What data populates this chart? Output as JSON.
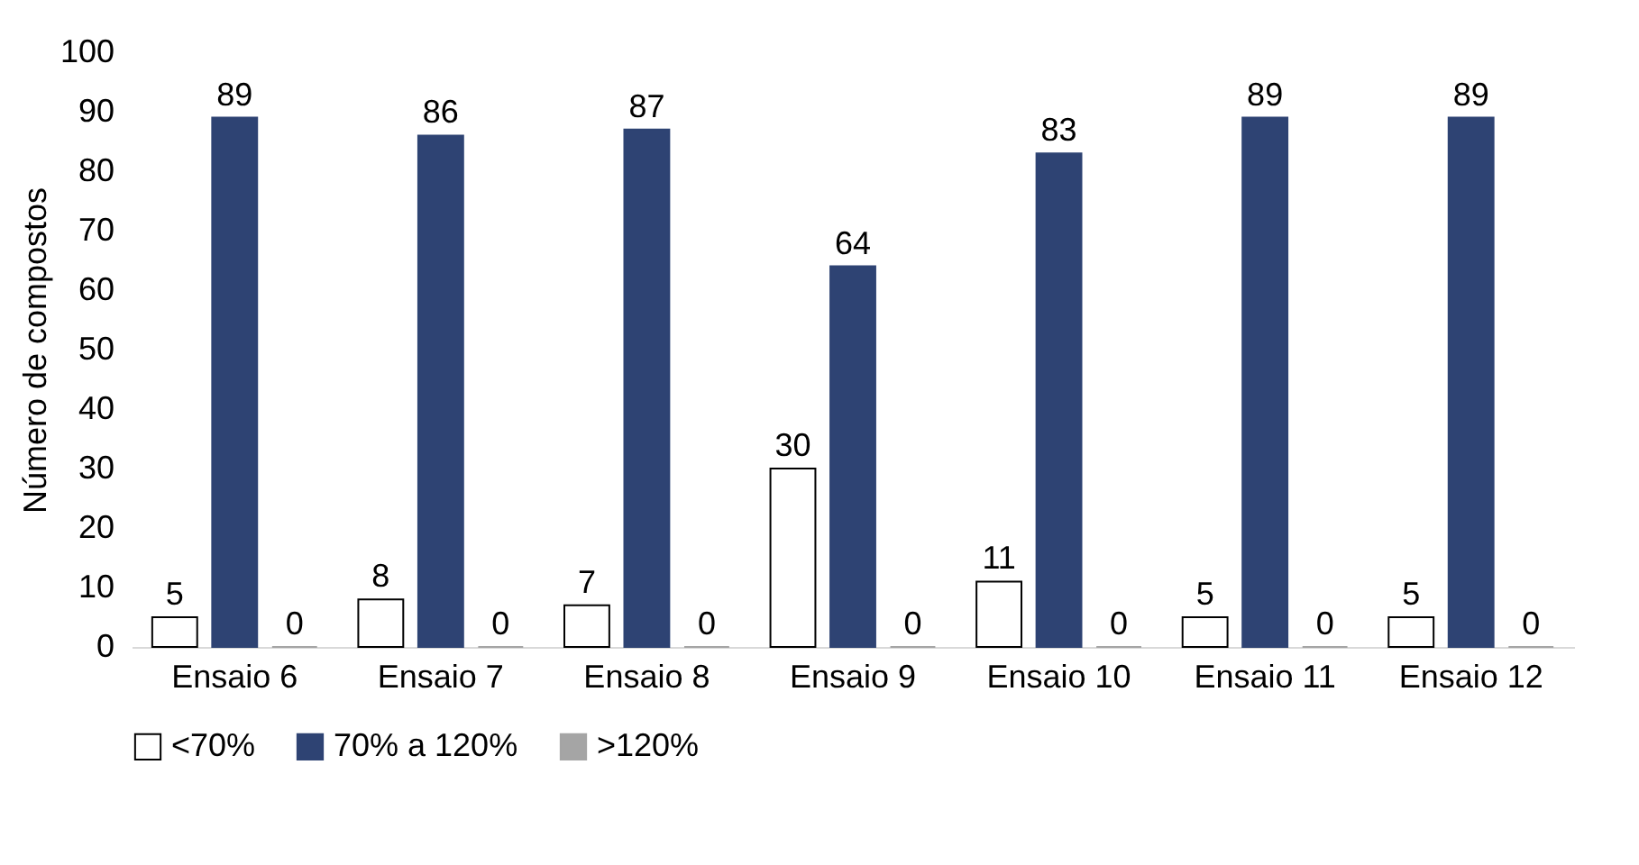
{
  "chart_data": {
    "type": "bar",
    "ylabel": "Número de compostos",
    "categories": [
      "Ensaio 6",
      "Ensaio 7",
      "Ensaio 8",
      "Ensaio 9",
      "Ensaio 10",
      "Ensaio 11",
      "Ensaio 12"
    ],
    "series": [
      {
        "name": "<70%",
        "color": "#ffffff",
        "values": [
          5,
          8,
          7,
          30,
          11,
          5,
          5
        ]
      },
      {
        "name": "70% a 120%",
        "color": "#2e4373",
        "values": [
          89,
          86,
          87,
          64,
          83,
          89,
          89
        ]
      },
      {
        "name": ">120%",
        "color": "#a5a5a5",
        "values": [
          0,
          0,
          0,
          0,
          0,
          0,
          0
        ]
      }
    ],
    "ylim": [
      0,
      100
    ],
    "yticks": [
      0,
      10,
      20,
      30,
      40,
      50,
      60,
      70,
      80,
      90,
      100
    ],
    "grid": false,
    "legend": "bottom",
    "data_labels": true
  }
}
